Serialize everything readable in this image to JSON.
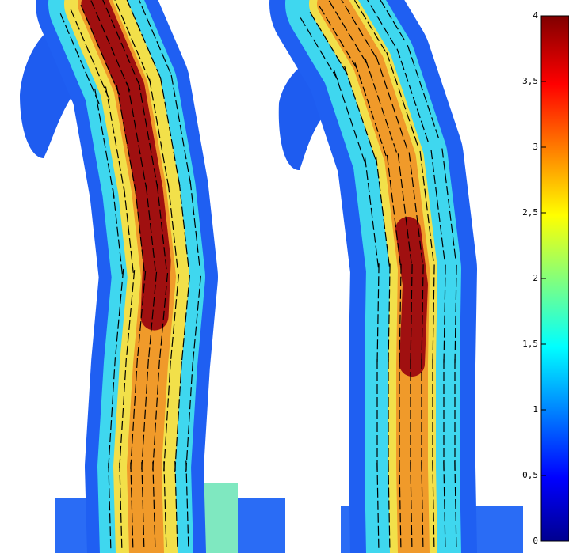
{
  "chart_data": {
    "type": "colorbar",
    "colormap": "jet",
    "ylim": [
      0,
      4
    ],
    "yticks": [
      0,
      {
        "value": 0.5,
        "label": "0,5"
      },
      1,
      {
        "value": 1.5,
        "label": "1,5"
      },
      2,
      {
        "value": 2.5,
        "label": "2,5"
      },
      3,
      {
        "value": 3.5,
        "label": "3,5"
      },
      4
    ]
  }
}
